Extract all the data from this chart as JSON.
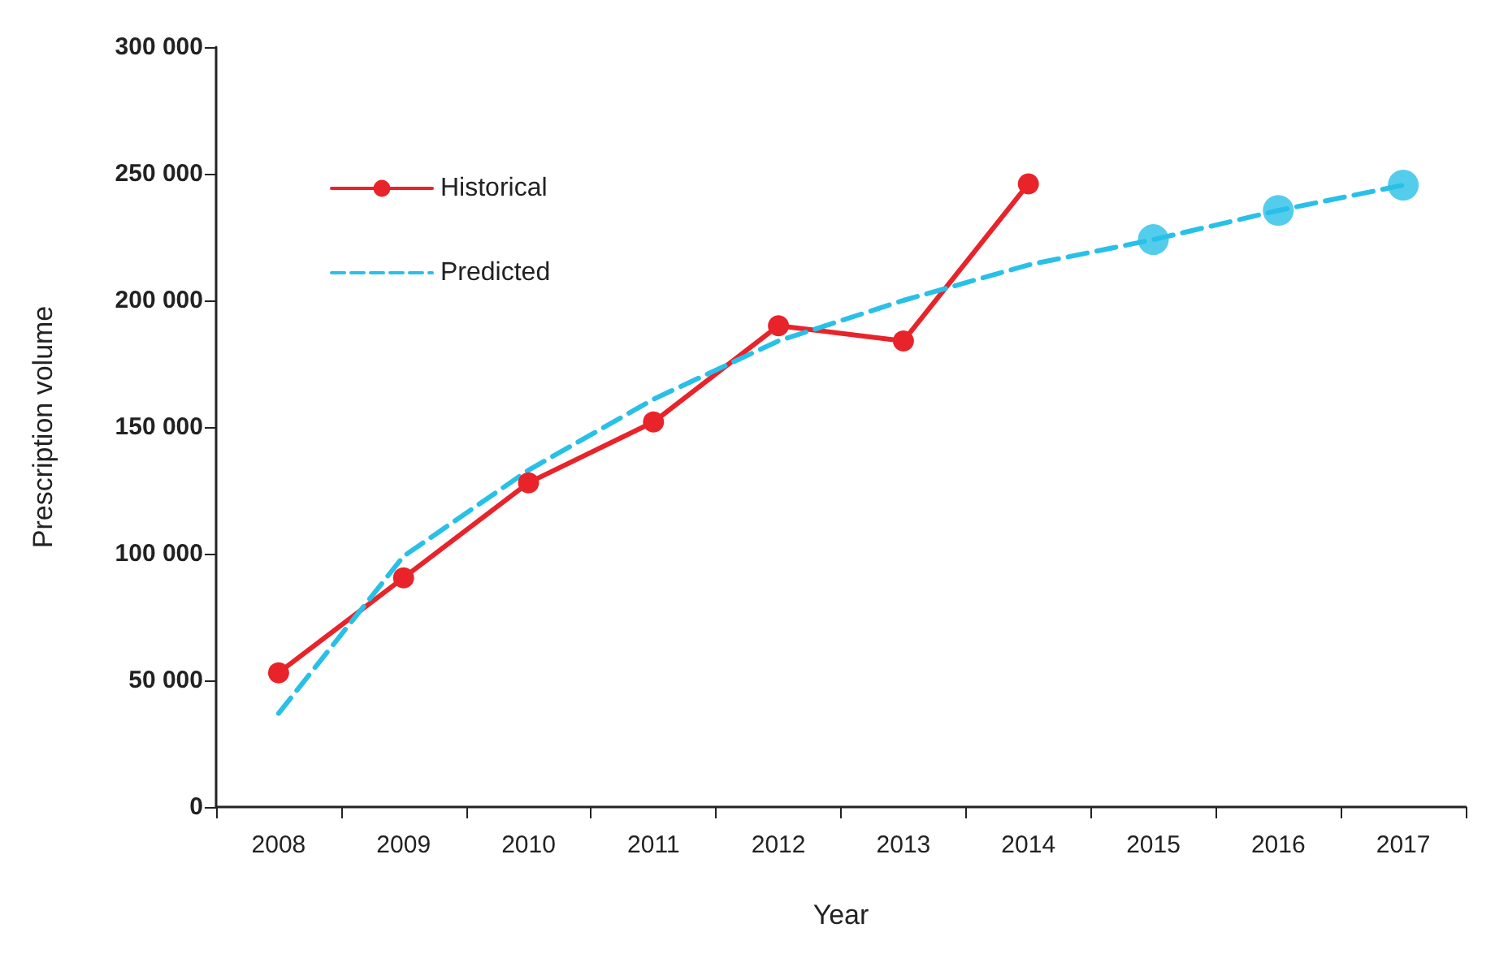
{
  "chart_data": {
    "type": "line",
    "xlabel": "Year",
    "ylabel": "Prescription volume",
    "categories": [
      "2008",
      "2009",
      "2010",
      "2011",
      "2012",
      "2013",
      "2014",
      "2015",
      "2016",
      "2017"
    ],
    "series": [
      {
        "name": "Historical",
        "color": "#e8232a",
        "marker": "circle",
        "line_style": "solid",
        "values": [
          53000,
          90500,
          128000,
          152000,
          190000,
          184000,
          246000,
          null,
          null,
          null
        ]
      },
      {
        "name": "Predicted",
        "color": "#29c0e8",
        "marker": "none",
        "line_style": "dashed",
        "values": [
          37000,
          99000,
          133000,
          161000,
          184000,
          200000,
          214000,
          224000,
          235500,
          245500
        ]
      },
      {
        "type": "scatter",
        "color": "#29c0e8",
        "marker": "circle",
        "values": [
          null,
          null,
          null,
          null,
          null,
          null,
          null,
          224000,
          235500,
          245500
        ]
      }
    ],
    "ylim": [
      0,
      300000
    ],
    "yticks": [
      0,
      {
        "value": 50000,
        "label": "50 000"
      },
      {
        "value": 100000,
        "label": "100 000"
      },
      {
        "value": 150000,
        "label": "150 000"
      },
      {
        "value": 200000,
        "label": "200 000"
      },
      {
        "value": 250000,
        "label": "250 000"
      },
      {
        "value": 300000,
        "label": "300 000"
      }
    ],
    "grid": false,
    "legend": "top left"
  }
}
